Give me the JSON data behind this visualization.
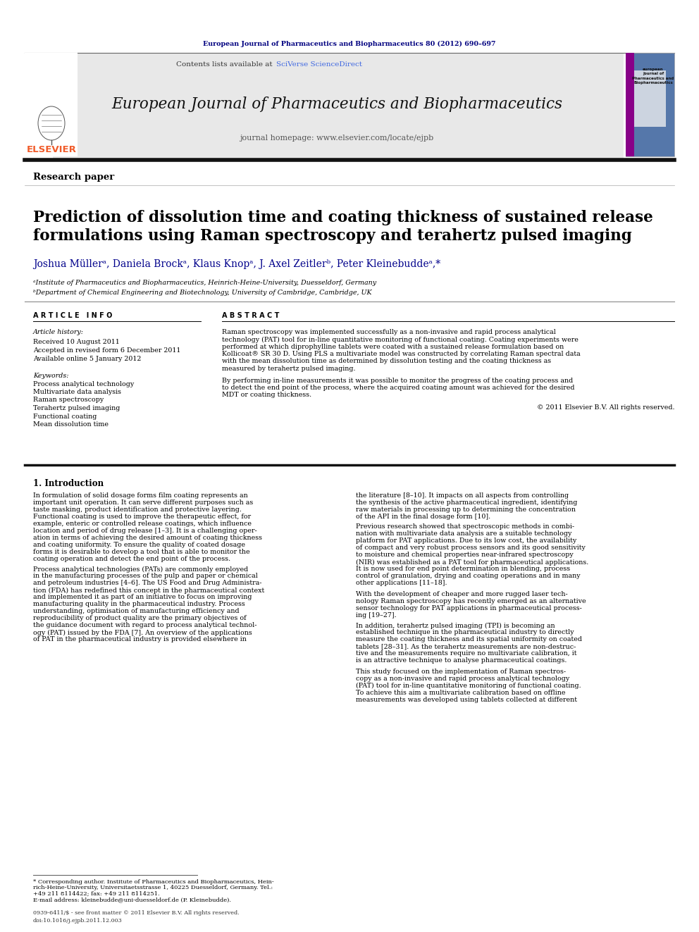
{
  "journal_header_text": "European Journal of Pharmaceutics and Biopharmaceutics 80 (2012) 690–697",
  "journal_name": "European Journal of Pharmaceutics and Biopharmaceutics",
  "journal_homepage": "journal homepage: www.elsevier.com/locate/ejpb",
  "contents_text": "Contents lists available at",
  "sciverse_text": "SciVerse ScienceDirect",
  "research_paper_label": "Research paper",
  "paper_title": "Prediction of dissolution time and coating thickness of sustained release\nformulations using Raman spectroscopy and terahertz pulsed imaging",
  "authors": "Joshua Müllerᵃ, Daniela Brockᵃ, Klaus Knopᵃ, J. Axel Zeitlerᵇ, Peter Kleinebuddeᵃ,*",
  "affiliation_a": "ᵃInstitute of Pharmaceutics and Biopharmaceutics, Heinrich-Heine-University, Duesseldorf, Germany",
  "affiliation_b": "ᵇDepartment of Chemical Engineering and Biotechnology, University of Cambridge, Cambridge, UK",
  "article_info_title": "A R T I C L E   I N F O",
  "abstract_title": "A B S T R A C T",
  "article_history_label": "Article history:",
  "received": "Received 10 August 2011",
  "revised": "Accepted in revised form 6 December 2011",
  "available": "Available online 5 January 2012",
  "keywords_label": "Keywords:",
  "keywords": [
    "Process analytical technology",
    "Multivariate data analysis",
    "Raman spectroscopy",
    "Terahertz pulsed imaging",
    "Functional coating",
    "Mean dissolution time"
  ],
  "abstract_text": "Raman spectroscopy was implemented successfully as a non-invasive and rapid process analytical\ntechnology (PAT) tool for in-line quantitative monitoring of functional coating. Coating experiments were\nperformed at which diprophylline tablets were coated with a sustained release formulation based on\nKollicoat® SR 30 D. Using PLS a multivariate model was constructed by correlating Raman spectral data\nwith the mean dissolution time as determined by dissolution testing and the coating thickness as\nmeasured by terahertz pulsed imaging.\n\nBy performing in-line measurements it was possible to monitor the progress of the coating process and\nto detect the end point of the process, where the acquired coating amount was achieved for the desired\nMDT or coating thickness.",
  "copyright_text": "© 2011 Elsevier B.V. All rights reserved.",
  "section1_title": "1. Introduction",
  "intro_col1": "In formulation of solid dosage forms film coating represents an\nimportant unit operation. It can serve different purposes such as\ntaste masking, product identification and protective layering.\nFunctional coating is used to improve the therapeutic effect, for\nexample, enteric or controlled release coatings, which influence\nlocation and period of drug release [1–3]. It is a challenging oper-\nation in terms of achieving the desired amount of coating thickness\nand coating uniformity. To ensure the quality of coated dosage\nforms it is desirable to develop a tool that is able to monitor the\ncoating operation and detect the end point of the process.\n\nProcess analytical technologies (PATs) are commonly employed\nin the manufacturing processes of the pulp and paper or chemical\nand petroleum industries [4–6]. The US Food and Drug Administra-\ntion (FDA) has redefined this concept in the pharmaceutical context\nand implemented it as part of an initiative to focus on improving\nmanufacturing quality in the pharmaceutical industry. Process\nunderstanding, optimisation of manufacturing efficiency and\nreproducibility of product quality are the primary objectives of\nthe guidance document with regard to process analytical technol-\nogy (PAT) issued by the FDA [7]. An overview of the applications\nof PAT in the pharmaceutical industry is provided elsewhere in",
  "intro_col2": "the literature [8–10]. It impacts on all aspects from controlling\nthe synthesis of the active pharmaceutical ingredient, identifying\nraw materials in processing up to determining the concentration\nof the API in the final dosage form [10].\n\nPrevious research showed that spectroscopic methods in combi-\nnation with multivariate data analysis are a suitable technology\nplatform for PAT applications. Due to its low cost, the availability\nof compact and very robust process sensors and its good sensitivity\nto moisture and chemical properties near-infrared spectroscopy\n(NIR) was established as a PAT tool for pharmaceutical applications.\nIt is now used for end point determination in blending, process\ncontrol of granulation, drying and coating operations and in many\nother applications [11–18].\n\nWith the development of cheaper and more rugged laser tech-\nnology Raman spectroscopy has recently emerged as an alternative\nsensor technology for PAT applications in pharmaceutical process-\ning [19–27].\n\nIn addition, terahertz pulsed imaging (TPI) is becoming an\nestablished technique in the pharmaceutical industry to directly\nmeasure the coating thickness and its spatial uniformity on coated\ntablets [28–31]. As the terahertz measurements are non-destruc-\ntive and the measurements require no multivariate calibration, it\nis an attractive technique to analyse pharmaceutical coatings.\n\nThis study focused on the implementation of Raman spectros-\ncopy as a non-invasive and rapid process analytical technology\n(PAT) tool for in-line quantitative monitoring of functional coating.\nTo achieve this aim a multivariate calibration based on offline\nmeasurements was developed using tablets collected at different",
  "footnote_text": "* Corresponding author. Institute of Pharmaceutics and Biopharmaceutics, Hein-\nrich-Heine-University, Universitaetsstrasse 1, 40225 Duesseldorf, Germany. Tel.:\n+49 211 8114422; fax: +49 211 8114251.\nE-mail address: kleinebudde@uni-duesseldorf.de (P. Kleinebudde).",
  "issn_line1": "0939-6411/$ - see front matter © 2011 Elsevier B.V. All rights reserved.",
  "issn_line2": "doi:10.1016/j.ejpb.2011.12.003",
  "bg_color": "#ffffff",
  "header_bg": "#e8e8e8",
  "journal_title_color": "#111111",
  "elsevier_color": "#f05a28",
  "dark_blue": "#000080",
  "sciverse_color": "#4169E1"
}
